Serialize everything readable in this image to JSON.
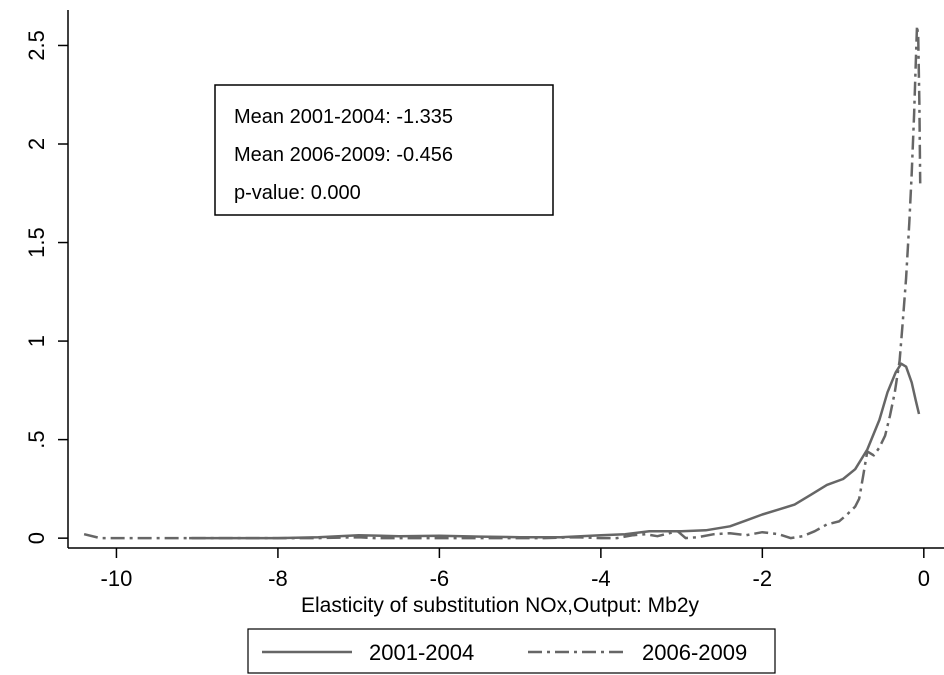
{
  "chart_data": {
    "type": "line",
    "xlabel": "Elasticity of substitution NOx,Output: Mb2y",
    "ylabel": "",
    "xlim": [
      -10.6,
      0.25
    ],
    "ylim": [
      -0.05,
      2.68
    ],
    "xticks": [
      {
        "value": -10,
        "label": "-10"
      },
      {
        "value": -8,
        "label": "-8"
      },
      {
        "value": -6,
        "label": "-6"
      },
      {
        "value": -4,
        "label": "-4"
      },
      {
        "value": -2,
        "label": "-2"
      },
      {
        "value": 0,
        "label": "0"
      }
    ],
    "yticks": [
      {
        "value": 0,
        "label": "0"
      },
      {
        "value": 0.5,
        "label": ".5"
      },
      {
        "value": 1,
        "label": "1"
      },
      {
        "value": 1.5,
        "label": "1.5"
      },
      {
        "value": 2,
        "label": "2"
      },
      {
        "value": 2.5,
        "label": "2.5"
      }
    ],
    "grid": false,
    "legend_position": "bottom",
    "annotation": {
      "lines": [
        "Mean 2001-2004: -1.335",
        "Mean 2006-2009: -0.456",
        "p-value: 0.000"
      ]
    },
    "series": [
      {
        "name": "2001-2004",
        "style": "solid",
        "color": "#666666",
        "points": [
          [
            -9.1,
            0.0
          ],
          [
            -8.0,
            0.0
          ],
          [
            -7.5,
            0.005
          ],
          [
            -7.0,
            0.015
          ],
          [
            -6.5,
            0.01
          ],
          [
            -6.0,
            0.012
          ],
          [
            -5.5,
            0.008
          ],
          [
            -5.0,
            0.005
          ],
          [
            -4.5,
            0.005
          ],
          [
            -4.0,
            0.015
          ],
          [
            -3.7,
            0.02
          ],
          [
            -3.4,
            0.035
          ],
          [
            -3.0,
            0.035
          ],
          [
            -2.7,
            0.04
          ],
          [
            -2.4,
            0.06
          ],
          [
            -2.2,
            0.09
          ],
          [
            -2.0,
            0.12
          ],
          [
            -1.8,
            0.145
          ],
          [
            -1.6,
            0.17
          ],
          [
            -1.4,
            0.22
          ],
          [
            -1.2,
            0.27
          ],
          [
            -1.0,
            0.3
          ],
          [
            -0.85,
            0.35
          ],
          [
            -0.7,
            0.45
          ],
          [
            -0.55,
            0.6
          ],
          [
            -0.45,
            0.74
          ],
          [
            -0.35,
            0.84
          ],
          [
            -0.28,
            0.885
          ],
          [
            -0.22,
            0.87
          ],
          [
            -0.15,
            0.79
          ],
          [
            -0.1,
            0.7
          ],
          [
            -0.06,
            0.63
          ]
        ]
      },
      {
        "name": "2006-2009",
        "style": "dashdot",
        "color": "#666666",
        "points": [
          [
            -10.4,
            0.02
          ],
          [
            -10.2,
            0.0
          ],
          [
            -9.5,
            0.0
          ],
          [
            -8.5,
            0.0
          ],
          [
            -7.5,
            0.0
          ],
          [
            -7.0,
            0.005
          ],
          [
            -6.8,
            0.0
          ],
          [
            -6.0,
            0.0
          ],
          [
            -5.5,
            0.0
          ],
          [
            -5.0,
            0.0
          ],
          [
            -4.7,
            0.0
          ],
          [
            -4.3,
            0.005
          ],
          [
            -4.0,
            0.0
          ],
          [
            -3.8,
            0.0
          ],
          [
            -3.6,
            0.015
          ],
          [
            -3.45,
            0.02
          ],
          [
            -3.3,
            0.01
          ],
          [
            -3.15,
            0.025
          ],
          [
            -3.05,
            0.035
          ],
          [
            -2.95,
            0.0
          ],
          [
            -2.8,
            0.005
          ],
          [
            -2.6,
            0.02
          ],
          [
            -2.4,
            0.025
          ],
          [
            -2.2,
            0.015
          ],
          [
            -2.0,
            0.03
          ],
          [
            -1.8,
            0.02
          ],
          [
            -1.65,
            0.0
          ],
          [
            -1.5,
            0.01
          ],
          [
            -1.35,
            0.035
          ],
          [
            -1.2,
            0.07
          ],
          [
            -1.05,
            0.085
          ],
          [
            -0.95,
            0.12
          ],
          [
            -0.85,
            0.16
          ],
          [
            -0.8,
            0.2
          ],
          [
            -0.75,
            0.32
          ],
          [
            -0.7,
            0.44
          ],
          [
            -0.62,
            0.42
          ],
          [
            -0.55,
            0.46
          ],
          [
            -0.48,
            0.52
          ],
          [
            -0.42,
            0.62
          ],
          [
            -0.36,
            0.74
          ],
          [
            -0.3,
            0.9
          ],
          [
            -0.26,
            1.1
          ],
          [
            -0.22,
            1.32
          ],
          [
            -0.18,
            1.6
          ],
          [
            -0.15,
            1.85
          ],
          [
            -0.12,
            2.15
          ],
          [
            -0.1,
            2.4
          ],
          [
            -0.085,
            2.6
          ],
          [
            -0.07,
            2.55
          ],
          [
            -0.055,
            2.2
          ],
          [
            -0.045,
            1.8
          ]
        ]
      }
    ]
  }
}
